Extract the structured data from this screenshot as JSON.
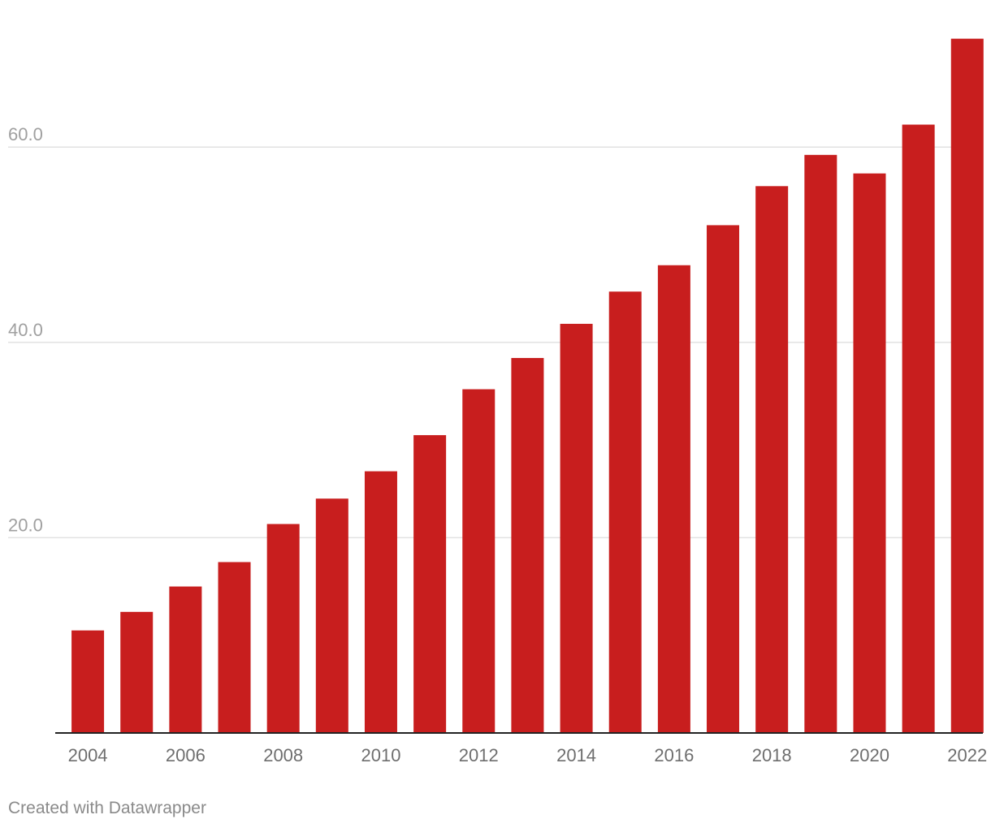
{
  "chart_data": {
    "type": "bar",
    "title": "",
    "xlabel": "",
    "ylabel": "",
    "categories": [
      "2004",
      "2005",
      "2006",
      "2007",
      "2008",
      "2009",
      "2010",
      "2011",
      "2012",
      "2013",
      "2014",
      "2015",
      "2016",
      "2017",
      "2018",
      "2019",
      "2020",
      "2021",
      "2022"
    ],
    "values": [
      10.5,
      12.4,
      15.0,
      17.5,
      21.4,
      24.0,
      26.8,
      30.5,
      35.2,
      38.4,
      41.9,
      45.2,
      47.9,
      52.0,
      56.0,
      59.2,
      57.3,
      62.3,
      71.1
    ],
    "x_tick_labels": [
      "2004",
      "2006",
      "2008",
      "2010",
      "2012",
      "2014",
      "2016",
      "2018",
      "2020",
      "2022"
    ],
    "y_ticks": [
      20,
      40,
      60
    ],
    "y_tick_labels": [
      "20.0",
      "40.0",
      "60.0"
    ],
    "ylim": [
      0,
      71.1
    ],
    "grid": true,
    "legend": "none",
    "bar_color": "#c81e1e"
  },
  "footer": {
    "credit": "Created with Datawrapper"
  }
}
